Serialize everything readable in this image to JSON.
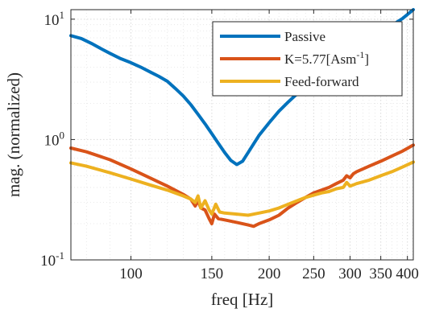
{
  "chart_data": {
    "type": "line",
    "title": "",
    "xlabel": "freq [Hz]",
    "ylabel": "mag. (normalized)",
    "x_scale": "log",
    "y_scale": "log",
    "xlim": [
      74,
      412
    ],
    "ylim": [
      0.1,
      12
    ],
    "x_ticks": [
      100,
      150,
      200,
      250,
      300,
      350,
      400
    ],
    "x_tick_labels": [
      "100",
      "150",
      "200",
      "250",
      "300",
      "350",
      "400"
    ],
    "y_ticks": [
      {
        "value": 0.1,
        "base": "10",
        "exp": "-1"
      },
      {
        "value": 1,
        "base": "10",
        "exp": "0"
      },
      {
        "value": 10,
        "base": "10",
        "exp": "1"
      }
    ],
    "grid": true,
    "minor_grid": true,
    "legend": {
      "placement": "top-right",
      "entries": [
        {
          "label": "Passive",
          "color": "#0072BD"
        },
        {
          "label": "K=5.77[Asm",
          "sup": "-1",
          "suffix": "]",
          "color": "#D95319"
        },
        {
          "label": "Feed-forward",
          "color": "#EDB120"
        }
      ]
    },
    "series": [
      {
        "name": "Passive",
        "color": "#0072BD",
        "x": [
          74,
          78,
          82,
          86,
          90,
          95,
          100,
          105,
          110,
          115,
          120,
          125,
          130,
          135,
          140,
          145,
          150,
          155,
          160,
          165,
          170,
          175,
          180,
          185,
          190,
          200,
          210,
          220,
          230,
          240,
          250,
          270,
          290,
          310,
          330,
          350,
          370,
          390,
          412
        ],
        "y": [
          7.3,
          6.9,
          6.3,
          5.7,
          5.2,
          4.7,
          4.35,
          4.0,
          3.65,
          3.35,
          3.05,
          2.65,
          2.3,
          1.95,
          1.62,
          1.35,
          1.12,
          0.93,
          0.78,
          0.67,
          0.62,
          0.66,
          0.78,
          0.92,
          1.08,
          1.38,
          1.72,
          2.05,
          2.4,
          2.75,
          3.1,
          3.85,
          4.75,
          5.7,
          6.8,
          7.8,
          8.9,
          10.1,
          12.0
        ]
      },
      {
        "name": "K=5.77[Asm-1]",
        "color": "#D95319",
        "x": [
          74,
          80,
          90,
          100,
          110,
          120,
          130,
          135,
          138,
          140,
          142,
          145,
          148,
          150,
          152,
          155,
          160,
          170,
          180,
          185,
          190,
          200,
          210,
          220,
          230,
          240,
          250,
          260,
          270,
          280,
          290,
          295,
          300,
          305,
          310,
          330,
          350,
          370,
          390,
          412
        ],
        "y": [
          0.85,
          0.79,
          0.68,
          0.57,
          0.48,
          0.41,
          0.35,
          0.32,
          0.28,
          0.31,
          0.27,
          0.26,
          0.22,
          0.2,
          0.24,
          0.22,
          0.215,
          0.205,
          0.195,
          0.19,
          0.2,
          0.215,
          0.235,
          0.27,
          0.3,
          0.33,
          0.36,
          0.38,
          0.4,
          0.43,
          0.46,
          0.5,
          0.48,
          0.52,
          0.54,
          0.6,
          0.66,
          0.73,
          0.8,
          0.9
        ]
      },
      {
        "name": "Feed-forward",
        "color": "#EDB120",
        "x": [
          74,
          80,
          90,
          100,
          110,
          120,
          130,
          135,
          138,
          140,
          142,
          145,
          148,
          150,
          153,
          156,
          160,
          170,
          180,
          190,
          200,
          210,
          220,
          230,
          240,
          250,
          260,
          270,
          280,
          290,
          295,
          300,
          305,
          310,
          330,
          350,
          370,
          390,
          412
        ],
        "y": [
          0.64,
          0.6,
          0.53,
          0.47,
          0.42,
          0.38,
          0.34,
          0.32,
          0.3,
          0.34,
          0.27,
          0.31,
          0.26,
          0.24,
          0.29,
          0.25,
          0.245,
          0.24,
          0.235,
          0.245,
          0.255,
          0.27,
          0.29,
          0.31,
          0.33,
          0.345,
          0.36,
          0.37,
          0.39,
          0.4,
          0.44,
          0.41,
          0.42,
          0.43,
          0.46,
          0.5,
          0.54,
          0.59,
          0.65
        ]
      }
    ]
  }
}
